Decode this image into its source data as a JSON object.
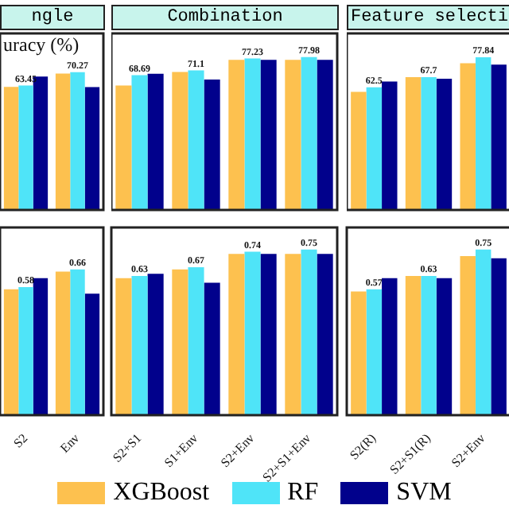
{
  "chart_data": [
    {
      "type": "bar",
      "title": "ngle",
      "annotations": [
        "uracy (%)"
      ],
      "categories": [
        null,
        null
      ],
      "ylim": [
        0,
        90
      ],
      "tick_labels": false,
      "legend": "bottom",
      "series": [
        {
          "name": "XGBoost",
          "color": "#fdc14f",
          "values": [
            62.7,
            69.5
          ]
        },
        {
          "name": "RF",
          "color": "#4fe4f8",
          "values": [
            63.45,
            70.27
          ],
          "value_labels": [
            "63.45",
            "70.27"
          ]
        },
        {
          "name": "SVM",
          "color": "#01018c",
          "values": [
            68.0,
            62.6
          ]
        }
      ]
    },
    {
      "type": "bar",
      "title": "Combination",
      "categories": [
        null,
        null,
        null,
        null
      ],
      "ylim": [
        0,
        90
      ],
      "tick_labels": false,
      "series": [
        {
          "color": "#fdc14f",
          "values": [
            63.4,
            70.3,
            76.5,
            76.5
          ]
        },
        {
          "color": "#4fe4f8",
          "values": [
            68.69,
            71.1,
            77.23,
            77.98
          ],
          "value_labels": [
            "68.69",
            "71.1",
            "77.23",
            "77.98"
          ]
        },
        {
          "color": "#01018c",
          "values": [
            69.4,
            66.5,
            76.5,
            76.5
          ]
        }
      ]
    },
    {
      "type": "bar",
      "title": "Feature selecti",
      "categories": [
        null,
        null,
        null
      ],
      "ylim": [
        0,
        90
      ],
      "tick_labels": false,
      "series": [
        {
          "color": "#fdc14f",
          "values": [
            60.2,
            67.7,
            74.8
          ]
        },
        {
          "color": "#4fe4f8",
          "values": [
            62.5,
            67.7,
            77.84
          ],
          "value_labels": [
            "62.5",
            "67.7",
            "77.84"
          ]
        },
        {
          "color": "#01018c",
          "values": [
            65.5,
            66.9,
            74.1
          ]
        }
      ]
    },
    {
      "type": "bar",
      "categories": [
        "S2",
        "Env"
      ],
      "ylim": [
        0,
        0.85
      ],
      "tick_labels": "x",
      "series": [
        {
          "color": "#fdc14f",
          "values": [
            0.57,
            0.65
          ]
        },
        {
          "color": "#4fe4f8",
          "values": [
            0.58,
            0.66
          ],
          "value_labels": [
            "0.58",
            "0.66"
          ]
        },
        {
          "color": "#01018c",
          "values": [
            0.62,
            0.55
          ]
        }
      ]
    },
    {
      "type": "bar",
      "categories": [
        "S2+S1",
        "S1+Env",
        "S2+Env",
        "S2+S1+Env"
      ],
      "ylim": [
        0,
        0.85
      ],
      "tick_labels": "x",
      "series": [
        {
          "color": "#fdc14f",
          "values": [
            0.62,
            0.66,
            0.73,
            0.73
          ]
        },
        {
          "color": "#4fe4f8",
          "values": [
            0.63,
            0.67,
            0.74,
            0.75
          ],
          "value_labels": [
            "0.63",
            "0.67",
            "0.74",
            "0.75"
          ]
        },
        {
          "color": "#01018c",
          "values": [
            0.64,
            0.6,
            0.73,
            0.73
          ]
        }
      ]
    },
    {
      "type": "bar",
      "categories": [
        "S2(R)",
        "S2+S1(R)",
        "S2+Env"
      ],
      "ylim": [
        0,
        0.85
      ],
      "tick_labels": "x",
      "series": [
        {
          "color": "#fdc14f",
          "values": [
            0.56,
            0.63,
            0.72
          ]
        },
        {
          "color": "#4fe4f8",
          "values": [
            0.57,
            0.63,
            0.75
          ],
          "value_labels": [
            "0.57",
            "0.63",
            "0.75"
          ]
        },
        {
          "color": "#01018c",
          "values": [
            0.62,
            0.62,
            0.71
          ]
        }
      ]
    }
  ]
}
